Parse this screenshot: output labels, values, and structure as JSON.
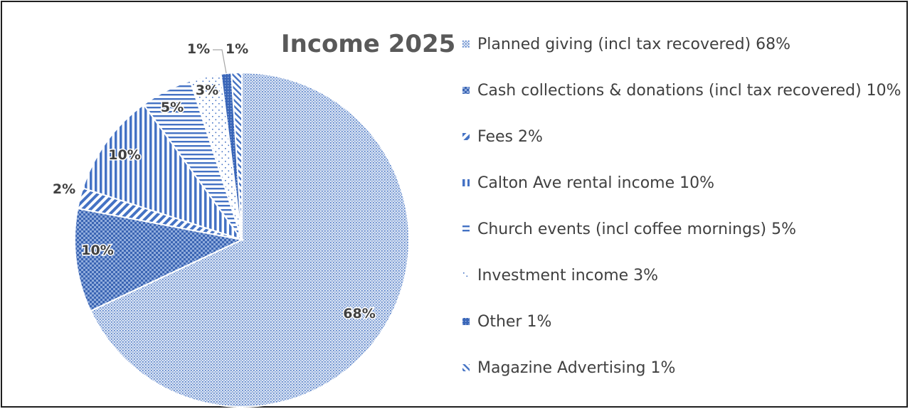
{
  "chart_data": {
    "type": "pie",
    "title": "Income 2025",
    "legend_position": "right",
    "slices": [
      {
        "label": "Planned giving (incl tax recovered)",
        "value": 68,
        "data_label": "68%",
        "legend_text": "Planned giving (incl tax recovered) 68%",
        "pattern": "fine-dots",
        "color": "#4472c4"
      },
      {
        "label": "Cash collections & donations (incl tax recovered)",
        "value": 10,
        "data_label": "10%",
        "legend_text": "Cash collections & donations (incl tax recovered) 10%",
        "pattern": "checker",
        "color": "#4472c4"
      },
      {
        "label": "Fees",
        "value": 2,
        "data_label": "2%",
        "legend_text": "Fees 2%",
        "pattern": "diagonal-stripes",
        "color": "#4472c4"
      },
      {
        "label": "Calton Ave rental income",
        "value": 10,
        "data_label": "10%",
        "legend_text": "Calton Ave rental income 10%",
        "pattern": "vertical-stripes",
        "color": "#4472c4"
      },
      {
        "label": "Church events (incl coffee mornings)",
        "value": 5,
        "data_label": "5%",
        "legend_text": "Church events (incl coffee mornings) 5%",
        "pattern": "horizontal-stripes",
        "color": "#4472c4"
      },
      {
        "label": "Investment income",
        "value": 3,
        "data_label": "3%",
        "legend_text": "Investment income 3%",
        "pattern": "sparse-dots",
        "color": "#4472c4"
      },
      {
        "label": "Other",
        "value": 1,
        "data_label": "1%",
        "legend_text": "Other 1%",
        "pattern": "dense",
        "color": "#4472c4"
      },
      {
        "label": "Magazine Advertising",
        "value": 1,
        "data_label": "1%",
        "legend_text": "Magazine Advertising 1%",
        "pattern": "diagonal-dash",
        "color": "#4472c4"
      }
    ]
  }
}
